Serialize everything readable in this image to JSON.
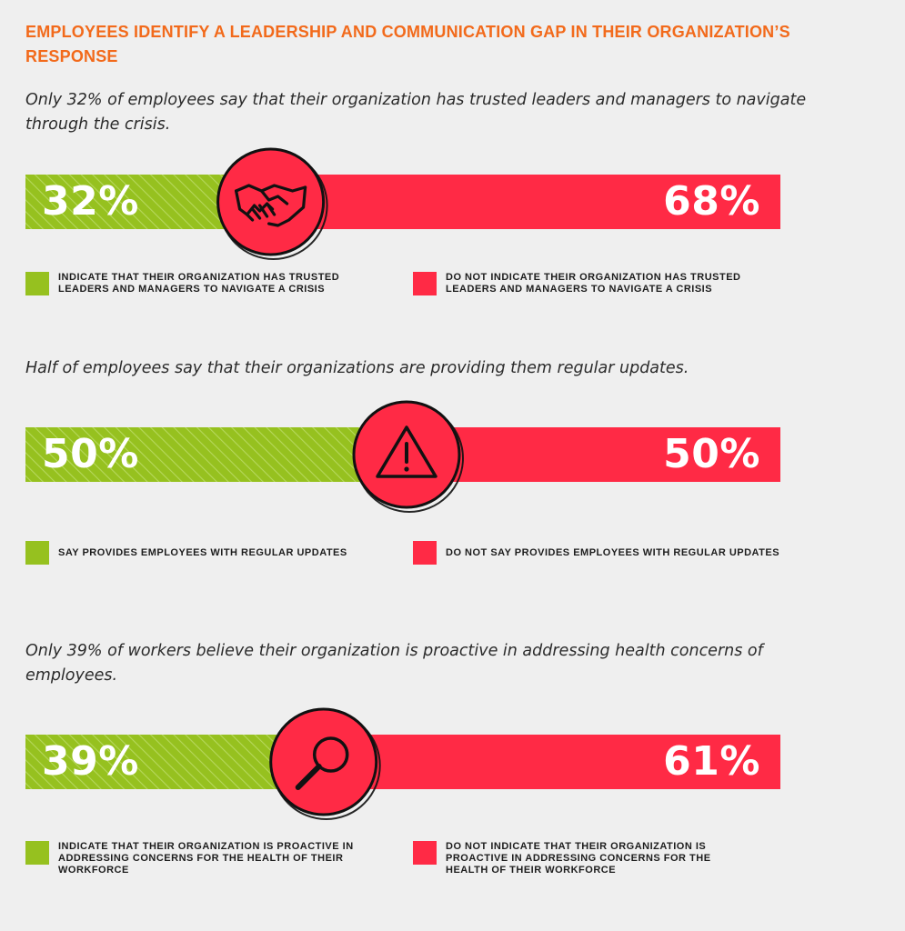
{
  "title": "EMPLOYEES IDENTIFY A LEADERSHIP AND COMMUNICATION GAP IN THEIR ORGANIZATION’S RESPONSE",
  "colors": {
    "green": "#96c11f",
    "red": "#ff2a45",
    "title": "#f26a1b",
    "background": "#efefef"
  },
  "chart_data": [
    {
      "type": "bar",
      "subtitle": "Only 32% of employees say that their organization has trusted leaders and managers to navigate through the crisis.",
      "icon": "handshake-icon",
      "series": [
        {
          "name": "INDICATE THAT THEIR ORGANIZATION HAS TRUSTED LEADERS AND MANAGERS TO NAVIGATE A CRISIS",
          "value": 32,
          "label": "32%",
          "color": "#96c11f"
        },
        {
          "name": "DO NOT INDICATE THEIR ORGANIZATION HAS TRUSTED LEADERS AND MANAGERS TO NAVIGATE A CRISIS",
          "value": 68,
          "label": "68%",
          "color": "#ff2a45"
        }
      ]
    },
    {
      "type": "bar",
      "subtitle": "Half of employees say that their organizations are providing them regular updates.",
      "icon": "warning-icon",
      "series": [
        {
          "name": "SAY PROVIDES EMPLOYEES WITH REGULAR UPDATES",
          "value": 50,
          "label": "50%",
          "color": "#96c11f"
        },
        {
          "name": "DO NOT SAY PROVIDES EMPLOYEES WITH REGULAR UPDATES",
          "value": 50,
          "label": "50%",
          "color": "#ff2a45"
        }
      ]
    },
    {
      "type": "bar",
      "subtitle": "Only 39% of workers believe their organization is proactive in addressing health concerns of employees.",
      "icon": "magnifier-icon",
      "series": [
        {
          "name": "INDICATE THAT THEIR ORGANIZATION IS PROACTIVE IN ADDRESSING CONCERNS FOR THE HEALTH OF THEIR WORKFORCE",
          "value": 39,
          "label": "39%",
          "color": "#96c11f"
        },
        {
          "name": "DO NOT INDICATE THAT THEIR ORGANIZATION IS PROACTIVE IN ADDRESSING CONCERNS FOR THE HEALTH OF THEIR WORKFORCE",
          "value": 61,
          "label": "61%",
          "color": "#ff2a45"
        }
      ]
    }
  ]
}
